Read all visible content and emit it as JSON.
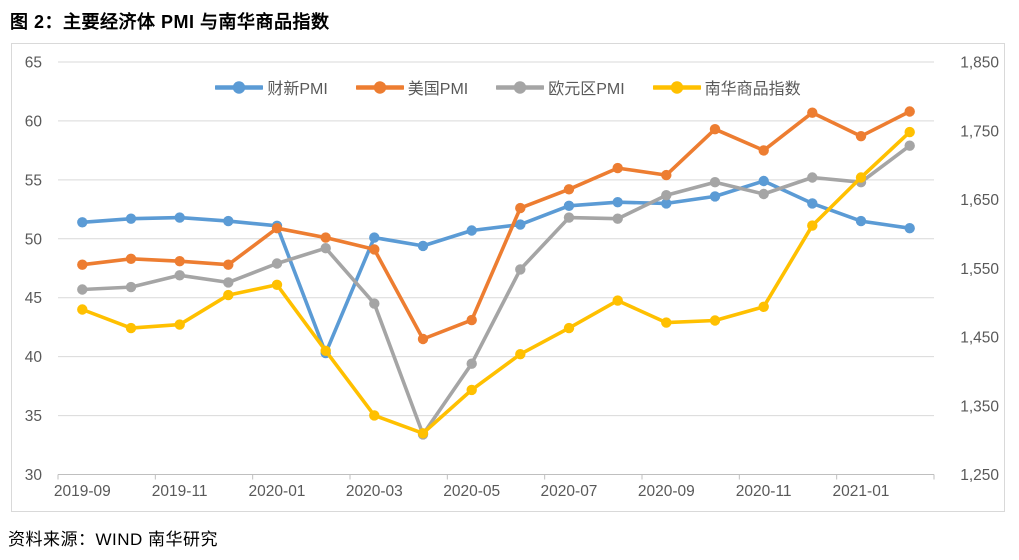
{
  "figure": {
    "title": "图 2：主要经济体 PMI 与南华商品指数",
    "source": "资料来源：WIND  南华研究"
  },
  "chart_data": {
    "type": "line",
    "title": "图 2：主要经济体 PMI 与南华商品指数",
    "x": [
      "2019-09",
      "2019-10",
      "2019-11",
      "2019-12",
      "2020-01",
      "2020-02",
      "2020-03",
      "2020-04",
      "2020-05",
      "2020-06",
      "2020-07",
      "2020-08",
      "2020-09",
      "2020-10",
      "2020-11",
      "2020-12",
      "2021-01",
      "2021-02"
    ],
    "x_tick_labels": [
      "2019-09",
      "2019-11",
      "2020-01",
      "2020-03",
      "2020-05",
      "2020-07",
      "2020-09",
      "2020-11",
      "2021-01"
    ],
    "series": [
      {
        "id": "caixin-pmi",
        "name": "财新PMI",
        "axis": "left",
        "color": "#5B9BD5",
        "values": [
          51.4,
          51.7,
          51.8,
          51.5,
          51.1,
          40.3,
          50.1,
          49.4,
          50.7,
          51.2,
          52.8,
          53.1,
          53.0,
          53.6,
          54.9,
          53.0,
          51.5,
          50.9
        ]
      },
      {
        "id": "us-pmi",
        "name": "美国PMI",
        "axis": "left",
        "color": "#ED7D31",
        "values": [
          47.8,
          48.3,
          48.1,
          47.8,
          50.9,
          50.1,
          49.1,
          41.5,
          43.1,
          52.6,
          54.2,
          56.0,
          55.4,
          59.3,
          57.5,
          60.7,
          58.7,
          60.8
        ]
      },
      {
        "id": "eurozone-pmi",
        "name": "欧元区PMI",
        "axis": "left",
        "color": "#A5A5A5",
        "values": [
          45.7,
          45.9,
          46.9,
          46.3,
          47.9,
          49.2,
          44.5,
          33.4,
          39.4,
          47.4,
          51.8,
          51.7,
          53.7,
          54.8,
          53.8,
          55.2,
          54.8,
          57.9
        ]
      },
      {
        "id": "nanhua-commodity-index",
        "name": "南华商品指数",
        "axis": "right",
        "color": "#FFC000",
        "values": [
          1490,
          1463,
          1468,
          1511,
          1526,
          1430,
          1336,
          1310,
          1373,
          1425,
          1463,
          1503,
          1471,
          1474,
          1494,
          1612,
          1682,
          1748
        ]
      }
    ],
    "left_axis": {
      "min": 30,
      "max": 65,
      "step": 5,
      "ticks": [
        "65",
        "60",
        "55",
        "50",
        "45",
        "40",
        "35",
        "30"
      ]
    },
    "right_axis": {
      "min": 1250,
      "max": 1850,
      "step": 100,
      "ticks": [
        "1,850",
        "1,750",
        "1,650",
        "1,550",
        "1,450",
        "1,350",
        "1,250"
      ]
    },
    "legend_position": "top",
    "grid": true,
    "grid_color": "#d9d9d9",
    "axis_text_color": "#595959"
  }
}
